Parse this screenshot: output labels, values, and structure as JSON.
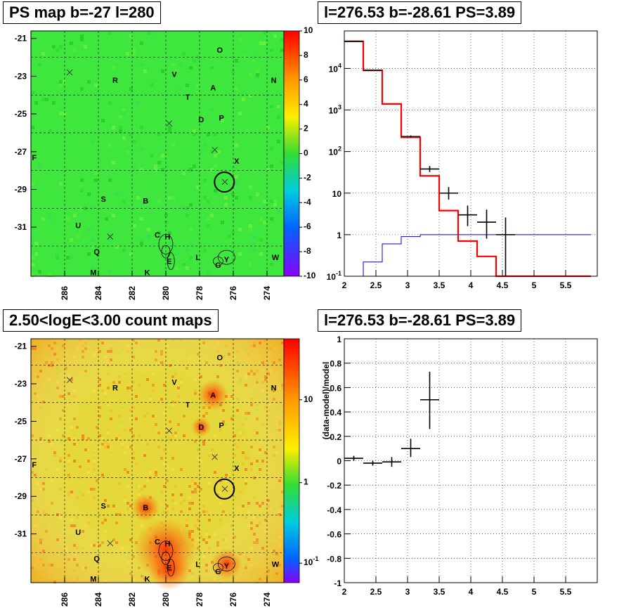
{
  "panels": {
    "ps_map_title": "PS map b=-27 l=280",
    "count_map_title": "2.50<logE<3.00 count maps",
    "spectrum_title": "l=276.53 b=-28.61 PS=3.89",
    "residual_title": "l=276.53 b=-28.61 PS=3.89"
  },
  "maps": {
    "x_ticks": [
      "286",
      "284",
      "282",
      "280",
      "278",
      "276",
      "274"
    ],
    "y_ticks": [
      "-21",
      "-23",
      "-25",
      "-27",
      "-29",
      "-31"
    ],
    "ps_colorbar_ticks": [
      "10",
      "8",
      "6",
      "4",
      "2",
      "0",
      "-2",
      "-4",
      "-6",
      "-8",
      "-10"
    ],
    "count_colorbar_ticks": [
      "10",
      "1",
      "10-1"
    ],
    "sources": [
      {
        "label": "O",
        "l": 276.8,
        "b": -21.6
      },
      {
        "label": "N",
        "l": 273.6,
        "b": -23.2
      },
      {
        "label": "V",
        "l": 279.5,
        "b": -22.9
      },
      {
        "label": "R",
        "l": 283.0,
        "b": -23.2
      },
      {
        "label": "A",
        "l": 277.2,
        "b": -23.6
      },
      {
        "label": "T",
        "l": 278.7,
        "b": -24.1
      },
      {
        "label": "D",
        "l": 277.9,
        "b": -25.3
      },
      {
        "label": "P",
        "l": 276.7,
        "b": -25.2
      },
      {
        "label": "F",
        "l": 287.8,
        "b": -27.3
      },
      {
        "label": "X",
        "l": 275.8,
        "b": -27.5
      },
      {
        "label": "S",
        "l": 283.7,
        "b": -29.5
      },
      {
        "label": "B",
        "l": 281.2,
        "b": -29.6
      },
      {
        "label": "U",
        "l": 285.2,
        "b": -30.9
      },
      {
        "label": "C",
        "l": 280.5,
        "b": -31.4
      },
      {
        "label": "H",
        "l": 279.9,
        "b": -31.5
      },
      {
        "label": "Q",
        "l": 284.1,
        "b": -32.3
      },
      {
        "label": "L",
        "l": 278.1,
        "b": -32.6
      },
      {
        "label": "E",
        "l": 279.8,
        "b": -32.8
      },
      {
        "label": "Y",
        "l": 276.4,
        "b": -32.7
      },
      {
        "label": "G",
        "l": 276.9,
        "b": -33.0
      },
      {
        "label": "W",
        "l": 273.5,
        "b": -32.6
      },
      {
        "label": "M",
        "l": 284.3,
        "b": -33.4
      },
      {
        "label": "K",
        "l": 281.1,
        "b": -33.4
      }
    ],
    "crosses": [
      {
        "l": 285.7,
        "b": -22.8
      },
      {
        "l": 279.8,
        "b": -25.5
      },
      {
        "l": 277.1,
        "b": -26.9
      },
      {
        "l": 283.3,
        "b": -31.5
      },
      {
        "l": 276.5,
        "b": -28.6
      }
    ],
    "circle": {
      "l": 276.53,
      "b": -28.61
    },
    "colors": {
      "background": "#3ee63e",
      "count_background": "#e6d83a"
    }
  },
  "chart_data": [
    {
      "type": "line",
      "xlim": [
        2,
        6
      ],
      "ylim": [
        0.1,
        80000
      ],
      "log_y": true,
      "grid": true,
      "x_ticks": [
        "2",
        "2.5",
        "3",
        "3.5",
        "4",
        "4.5",
        "5",
        "5.5"
      ],
      "y_ticks": [
        "10-1",
        "1",
        "10",
        "102",
        "103",
        "104"
      ],
      "model_total": {
        "color": "#ff0000",
        "edges": [
          2.0,
          2.3,
          2.6,
          2.9,
          3.2,
          3.5,
          3.8,
          4.1,
          4.4,
          4.7,
          5.0,
          5.3,
          5.6,
          5.9
        ],
        "values": [
          45000,
          9000,
          1400,
          220,
          26,
          3.8,
          0.7,
          0.3,
          0.08,
          0.05,
          0.1,
          0.1,
          0.1
        ]
      },
      "model_source": {
        "color": "#0000cc",
        "edges": [
          2.0,
          2.3,
          2.6,
          2.9,
          3.2,
          3.5,
          3.8,
          4.1,
          4.4,
          4.7,
          5.0,
          5.3,
          5.6,
          5.9
        ],
        "values": [
          0.1,
          0.22,
          0.6,
          0.9,
          1.0,
          1.0,
          1.0,
          1.0,
          1.0,
          1.0,
          1.0,
          1.0,
          1.0
        ]
      },
      "data_points": [
        {
          "x": 2.15,
          "y": 45000,
          "xerr": 0.15,
          "ylo": 44700,
          "yhi": 45300
        },
        {
          "x": 2.45,
          "y": 9000,
          "xerr": 0.15,
          "ylo": 8900,
          "yhi": 9100
        },
        {
          "x": 3.05,
          "y": 230,
          "xerr": 0.15,
          "ylo": 215,
          "yhi": 245
        },
        {
          "x": 3.35,
          "y": 38,
          "xerr": 0.15,
          "ylo": 32,
          "yhi": 45
        },
        {
          "x": 3.65,
          "y": 10,
          "xerr": 0.15,
          "ylo": 7,
          "yhi": 14
        },
        {
          "x": 3.95,
          "y": 3,
          "xerr": 0.15,
          "ylo": 1.6,
          "yhi": 5
        },
        {
          "x": 4.25,
          "y": 2,
          "xerr": 0.15,
          "ylo": 0.8,
          "yhi": 4
        },
        {
          "x": 4.55,
          "y": 1,
          "xerr": 0.15,
          "ylo": 0.1,
          "yhi": 2.6
        }
      ]
    },
    {
      "type": "scatter",
      "xlim": [
        2,
        6
      ],
      "ylim": [
        -1,
        1
      ],
      "ylabel": "(data-model)/model",
      "grid": true,
      "x_ticks": [
        "2",
        "2.5",
        "3",
        "3.5",
        "4",
        "4.5",
        "5",
        "5.5"
      ],
      "y_ticks": [
        "1",
        "0.8",
        "0.6",
        "0.4",
        "0.2",
        "0",
        "-0.2",
        "-0.4",
        "-0.6",
        "-0.8",
        "-1"
      ],
      "points": [
        {
          "x": 2.15,
          "y": 0.02,
          "xerr": 0.15,
          "ylo": 0.0,
          "yhi": 0.04
        },
        {
          "x": 2.45,
          "y": -0.02,
          "xerr": 0.15,
          "ylo": -0.04,
          "yhi": 0.0
        },
        {
          "x": 2.75,
          "y": -0.01,
          "xerr": 0.15,
          "ylo": -0.05,
          "yhi": 0.03
        },
        {
          "x": 3.05,
          "y": 0.1,
          "xerr": 0.15,
          "ylo": 0.03,
          "yhi": 0.18
        },
        {
          "x": 3.35,
          "y": 0.5,
          "xerr": 0.15,
          "ylo": 0.26,
          "yhi": 0.73
        }
      ]
    }
  ]
}
